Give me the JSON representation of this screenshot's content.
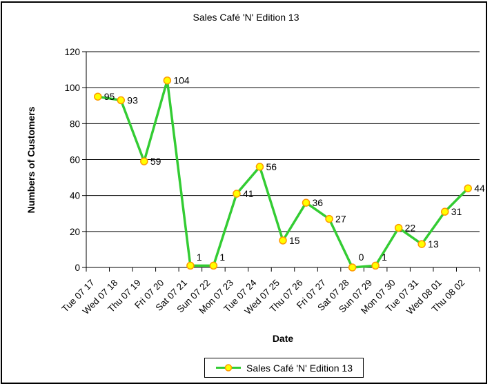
{
  "window": {
    "background": "#FFFFFF",
    "border_color": "#000000"
  },
  "chart_data": {
    "type": "line",
    "title": "Sales Café 'N' Edition 13",
    "xlabel": "Date",
    "ylabel": "Numbers of Customers",
    "categories": [
      "Tue 07 17",
      "Wed 07 18",
      "Thu 07 19",
      "Fri 07 20",
      "Sat 07 21",
      "Sun 07 22",
      "Mon 07 23",
      "Tue 07 24",
      "Wed 07 25",
      "Thu 07 26",
      "Fri 07 27",
      "Sat 07 28",
      "Sun 07 29",
      "Mon 07 30",
      "Tue 07 31",
      "Wed 08 01",
      "Thu 08 02"
    ],
    "series": [
      {
        "name": "Sales Café 'N' Edition 13",
        "values": [
          95,
          93,
          59,
          104,
          1,
          1,
          41,
          56,
          15,
          36,
          27,
          0,
          1,
          22,
          13,
          31,
          44
        ]
      }
    ],
    "ylim": [
      0,
      120
    ],
    "yticks": [
      0,
      20,
      40,
      60,
      80,
      100,
      120
    ],
    "grid": "horizontal",
    "data_labels": true,
    "legend_position": "bottom",
    "colors": {
      "line": "#33CC33",
      "marker_fill": "#FFFF00",
      "marker_stroke": "#FF9900",
      "axis": "#000000",
      "gridline": "#000000",
      "text": "#000000"
    }
  },
  "legend": {
    "label": "Sales Café 'N' Edition 13"
  }
}
